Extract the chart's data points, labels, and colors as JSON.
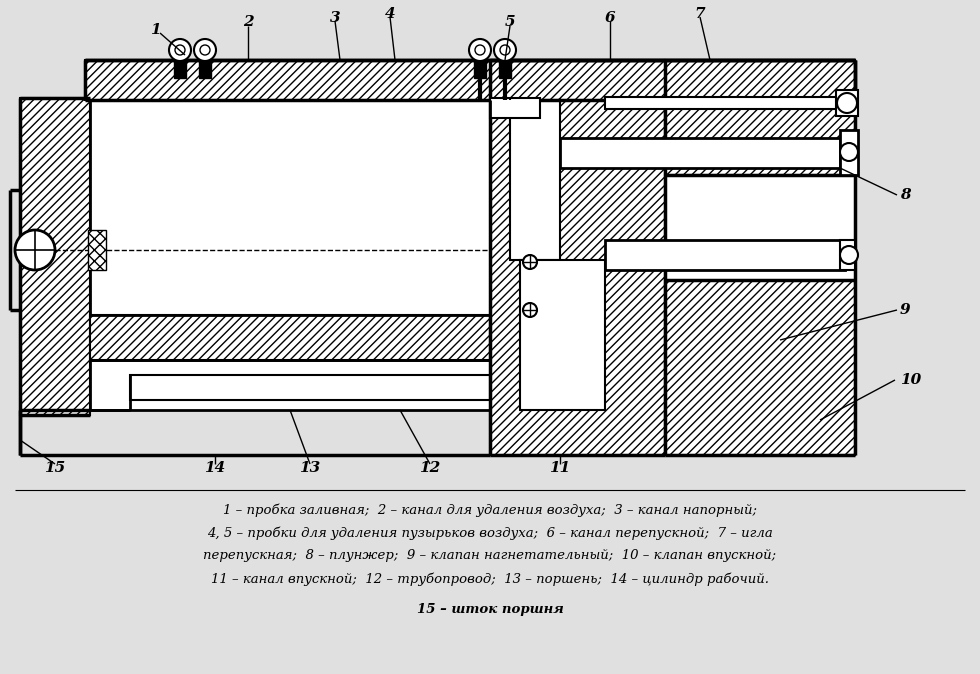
{
  "bg_color": "#e0e0e0",
  "legend_lines": [
    "1 – пробка заливная;  2 – канал для удаления воздуха;  3 – канал напорный;",
    "4, 5 – пробки для удаления пузырьков воздуха;  6 – канал перепускной;  7 – игла",
    "перепускная;  8 – плунжер;  9 – клапан нагнетательный;  10 – клапан впускной;",
    "11 – канал впускной;  12 – трубопровод;  13 – поршень;  14 – цилиндр рабочий.",
    "15 – шток поршня"
  ]
}
